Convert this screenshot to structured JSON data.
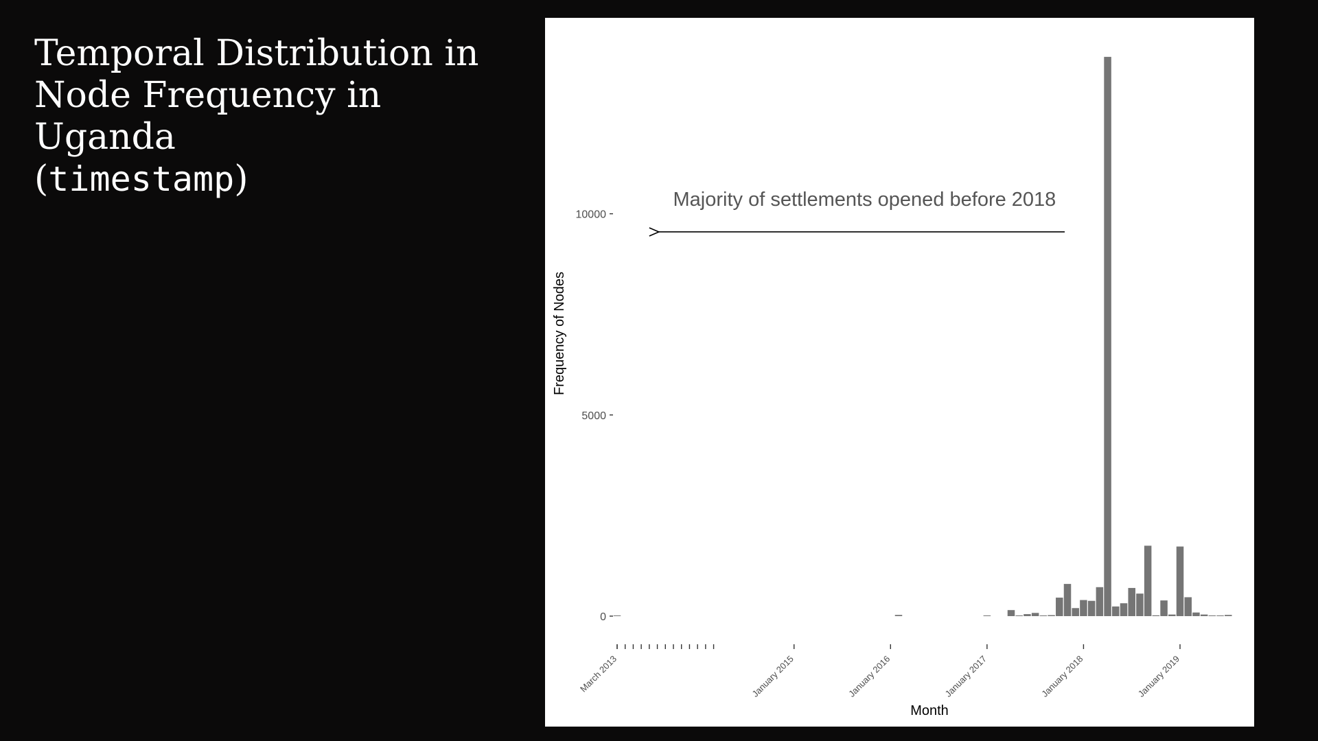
{
  "slide": {
    "title_line1": "Temporal Distribution in",
    "title_line2": "Node Frequency in Uganda",
    "title_paren_open": "(",
    "title_code": "timestamp",
    "title_paren_close": ")"
  },
  "chart_data": {
    "type": "bar",
    "title": "",
    "xlabel": "Month",
    "ylabel": "Frequency of Nodes",
    "ylim": [
      0,
      14000
    ],
    "y_ticks": [
      0,
      5000,
      10000
    ],
    "grid": false,
    "background": "#ffffff",
    "bar_color": "#757575",
    "x_tick_labels": [
      "March 2013",
      "January 2015",
      "January 2016",
      "January 2017",
      "January 2018",
      "January 2019"
    ],
    "annotation": {
      "text": "Majority of settlements opened before 2018",
      "arrow": "left",
      "x_from": "2017-11",
      "x_to": "2013-07",
      "y": 9550
    },
    "series": [
      {
        "x": [
          "2013-03",
          "2016-02",
          "2017-01",
          "2017-04",
          "2017-05",
          "2017-06",
          "2017-07",
          "2017-08",
          "2017-09",
          "2017-10",
          "2017-11",
          "2017-12",
          "2018-01",
          "2018-02",
          "2018-03",
          "2018-04",
          "2018-05",
          "2018-06",
          "2018-07",
          "2018-08",
          "2018-09",
          "2018-10",
          "2018-11",
          "2018-12",
          "2019-01",
          "2019-02",
          "2019-03",
          "2019-04",
          "2019-05",
          "2019-06",
          "2019-07"
        ],
        "values": [
          10,
          30,
          15,
          150,
          5,
          50,
          80,
          5,
          25,
          460,
          800,
          200,
          400,
          380,
          720,
          13900,
          240,
          320,
          700,
          560,
          1750,
          20,
          390,
          40,
          1730,
          470,
          90,
          40,
          5,
          10,
          30
        ]
      }
    ]
  }
}
